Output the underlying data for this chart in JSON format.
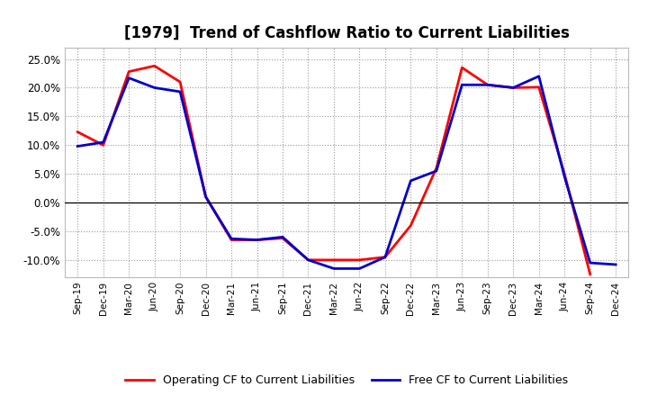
{
  "title": "[1979]  Trend of Cashflow Ratio to Current Liabilities",
  "x_labels": [
    "Sep-19",
    "Dec-19",
    "Mar-20",
    "Jun-20",
    "Sep-20",
    "Dec-20",
    "Mar-21",
    "Jun-21",
    "Sep-21",
    "Dec-21",
    "Mar-22",
    "Jun-22",
    "Sep-22",
    "Dec-22",
    "Mar-23",
    "Jun-23",
    "Sep-23",
    "Dec-23",
    "Mar-24",
    "Jun-24",
    "Sep-24",
    "Dec-24"
  ],
  "operating_cf": [
    0.123,
    0.1,
    0.228,
    0.238,
    0.21,
    0.01,
    -0.065,
    -0.065,
    -0.062,
    -0.1,
    -0.1,
    -0.1,
    -0.095,
    -0.04,
    0.06,
    0.235,
    0.205,
    0.2,
    0.201,
    0.05,
    -0.125,
    null
  ],
  "free_cf": [
    0.098,
    0.105,
    0.217,
    0.2,
    0.193,
    0.01,
    -0.063,
    -0.065,
    -0.06,
    -0.1,
    -0.115,
    -0.115,
    -0.095,
    0.038,
    0.055,
    0.205,
    0.205,
    0.2,
    0.22,
    0.045,
    -0.105,
    -0.108
  ],
  "operating_color": "#ff0000",
  "free_color": "#0000cc",
  "ylim": [
    -0.13,
    0.27
  ],
  "yticks": [
    -0.1,
    -0.05,
    0.0,
    0.05,
    0.1,
    0.15,
    0.2,
    0.25
  ],
  "background_color": "#ffffff",
  "grid_color": "#999999",
  "legend_operating": "Operating CF to Current Liabilities",
  "legend_free": "Free CF to Current Liabilities",
  "line_width": 2.0,
  "title_fontsize": 12
}
